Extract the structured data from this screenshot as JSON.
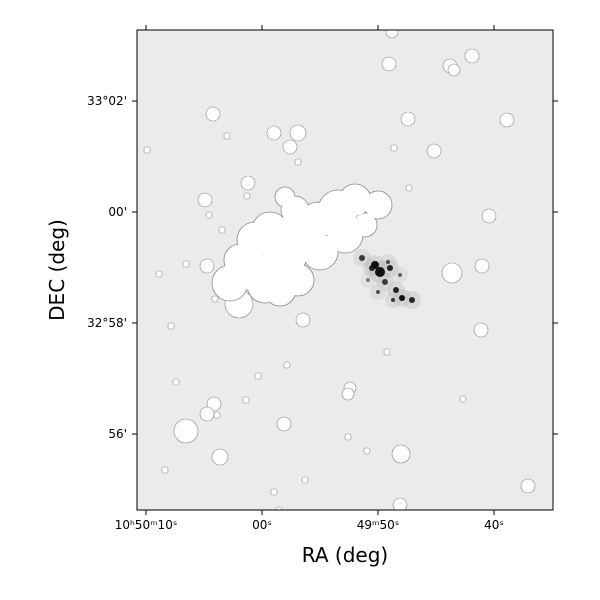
{
  "plot": {
    "x_label": "RA (deg)",
    "y_label": "DEC (deg)",
    "x_tick_labels": [
      "10ʰ50ᵐ10ˢ",
      "00ˢ",
      "49ᵐ50ˢ",
      "40ˢ"
    ],
    "y_tick_labels": [
      "33°02'",
      "00'",
      "32°58'",
      "56'"
    ]
  }
}
